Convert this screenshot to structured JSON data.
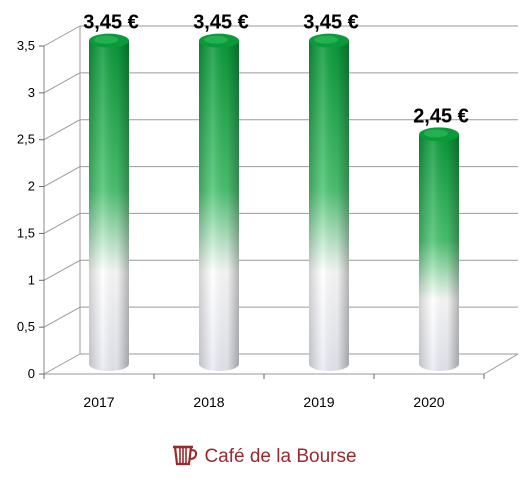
{
  "chart_data": {
    "type": "bar",
    "categories": [
      "2017",
      "2018",
      "2019",
      "2020"
    ],
    "values": [
      3.45,
      3.45,
      3.45,
      2.45
    ],
    "data_labels": [
      "3,45 €",
      "3,45 €",
      "3,45 €",
      "2,45 €"
    ],
    "y_ticks": [
      {
        "value": 0,
        "label": "0"
      },
      {
        "value": 0.5,
        "label": "0,5"
      },
      {
        "value": 1,
        "label": "1"
      },
      {
        "value": 1.5,
        "label": "1,5"
      },
      {
        "value": 2,
        "label": "2"
      },
      {
        "value": 2.5,
        "label": "2,5"
      },
      {
        "value": 3,
        "label": "3"
      },
      {
        "value": 3.5,
        "label": "3,5"
      }
    ],
    "ylim": [
      0,
      3.5
    ],
    "grid": true,
    "style": "3d-cylinder",
    "colors": {
      "top": "#0a9a3a",
      "mid": "#4cc472",
      "bottom": "#ffffff",
      "shade": "#b8bcc8",
      "grid": "#9a9a9a"
    }
  },
  "brand": {
    "name": "Café de la Bourse",
    "icon": "coffee-cup-icon",
    "color": "#9a2a2e"
  }
}
